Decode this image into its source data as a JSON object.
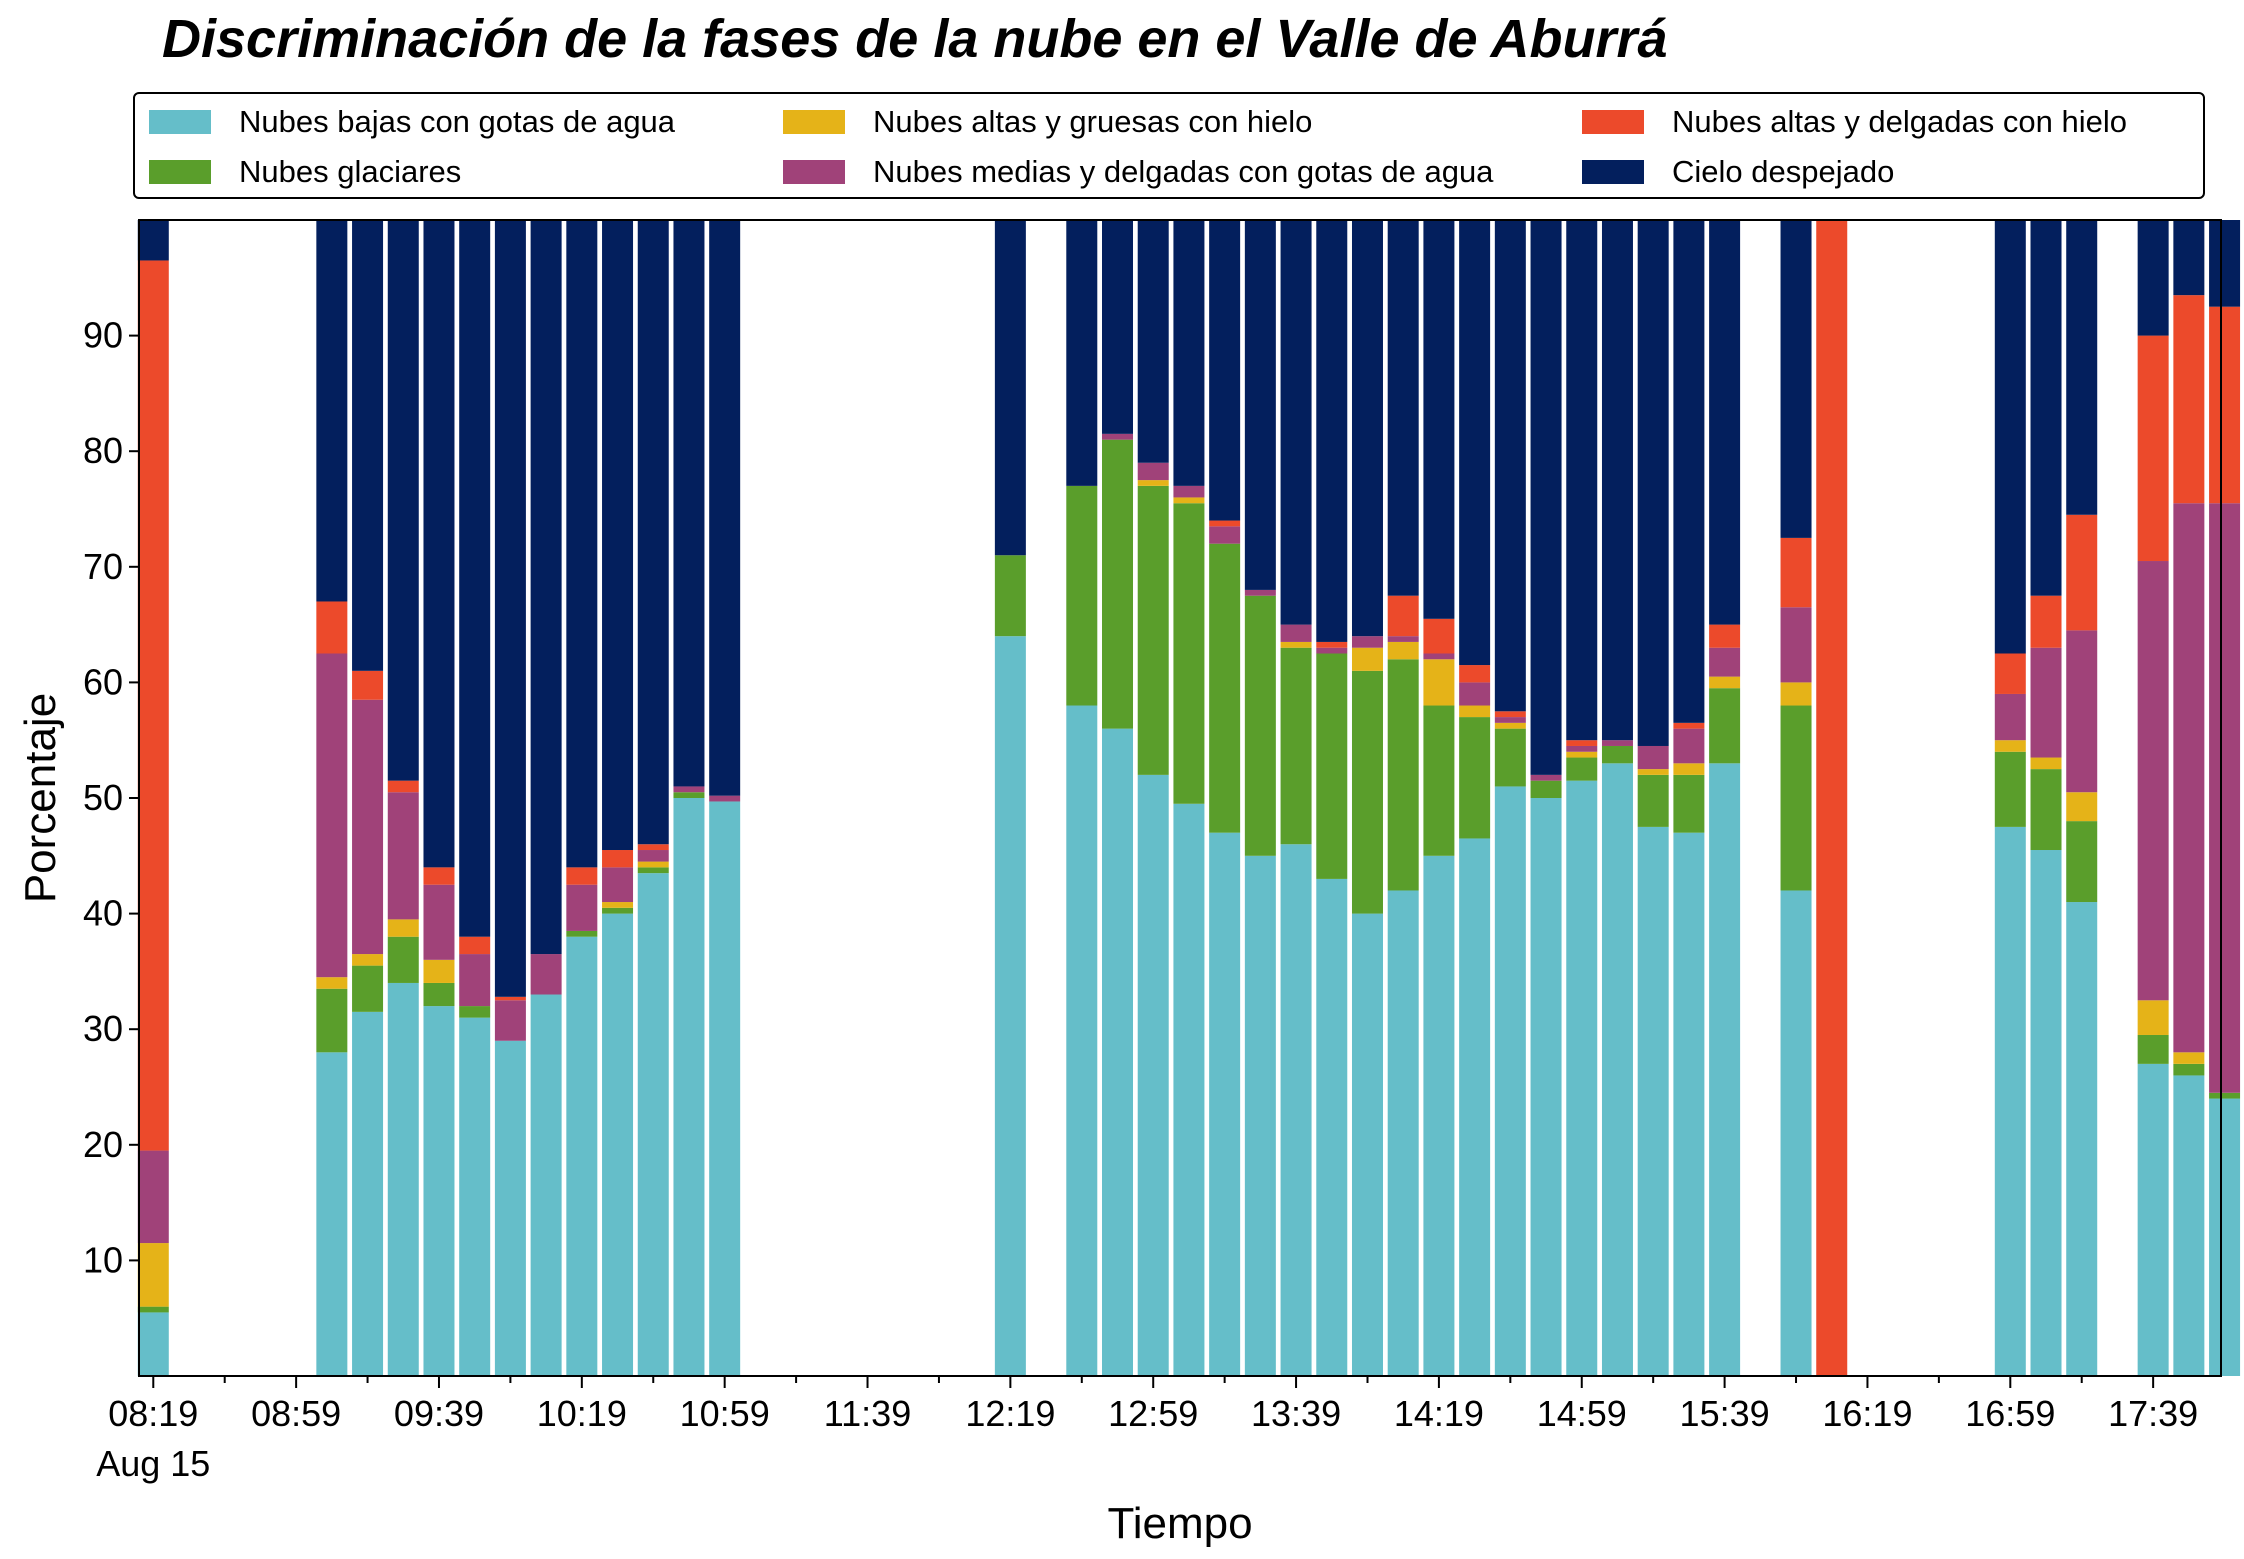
{
  "chart_data": {
    "type": "bar",
    "stacked": true,
    "title": "Discriminación de la fases de la nube en el Valle de Aburrá",
    "xlabel": "Tiempo",
    "ylabel": "Porcentaje",
    "ylim": [
      0,
      100
    ],
    "yticks": [
      10,
      20,
      30,
      40,
      50,
      60,
      70,
      80,
      90
    ],
    "xticks": [
      "08:19",
      "08:59",
      "09:39",
      "10:19",
      "10:59",
      "11:39",
      "12:19",
      "12:59",
      "13:39",
      "14:19",
      "14:59",
      "15:39",
      "16:19",
      "16:59",
      "17:39"
    ],
    "x_date_label": "Aug 15",
    "x_range_minutes": [
      495,
      1078
    ],
    "grid": false,
    "legend_placement": "top",
    "series": [
      {
        "name": "Nubes bajas con gotas de agua",
        "color": "#65bec9"
      },
      {
        "name": "Nubes glaciares",
        "color": "#5a9e2b"
      },
      {
        "name": "Nubes altas y gruesas con hielo",
        "color": "#e5b318"
      },
      {
        "name": "Nubes medias y delgadas con gotas de agua",
        "color": "#a04279"
      },
      {
        "name": "Nubes altas y delgadas con hielo",
        "color": "#ec4a2b"
      },
      {
        "name": "Cielo despejado",
        "color": "#031f5d"
      }
    ],
    "bars": [
      {
        "time": "08:19",
        "values": [
          5.5,
          0.5,
          5.5,
          8.0,
          77.0,
          3.5
        ]
      },
      {
        "time": "09:09",
        "values": [
          28.0,
          5.5,
          1.0,
          28.0,
          4.5,
          33.0
        ]
      },
      {
        "time": "09:19",
        "values": [
          31.5,
          4.0,
          1.0,
          22.0,
          2.5,
          39.0
        ]
      },
      {
        "time": "09:29",
        "values": [
          34.0,
          4.0,
          1.5,
          11.0,
          1.0,
          48.5
        ]
      },
      {
        "time": "09:39",
        "values": [
          32.0,
          2.0,
          2.0,
          6.5,
          1.5,
          56.0
        ]
      },
      {
        "time": "09:49",
        "values": [
          31.0,
          1.0,
          0.0,
          4.5,
          1.5,
          62.0
        ]
      },
      {
        "time": "09:59",
        "values": [
          29.0,
          0.0,
          0.0,
          3.5,
          0.3,
          67.2
        ]
      },
      {
        "time": "10:09",
        "values": [
          33.0,
          0.0,
          0.0,
          3.5,
          0.0,
          63.5
        ]
      },
      {
        "time": "10:19",
        "values": [
          38.0,
          0.5,
          0.0,
          4.0,
          1.5,
          56.0
        ]
      },
      {
        "time": "10:29",
        "values": [
          40.0,
          0.5,
          0.5,
          3.0,
          1.5,
          54.5
        ]
      },
      {
        "time": "10:39",
        "values": [
          43.5,
          0.5,
          0.5,
          1.0,
          0.5,
          54.0
        ]
      },
      {
        "time": "10:49",
        "values": [
          50.0,
          0.5,
          0.0,
          0.5,
          0.0,
          49.0
        ]
      },
      {
        "time": "10:59",
        "values": [
          49.7,
          0.0,
          0.0,
          0.5,
          0.0,
          49.8
        ]
      },
      {
        "time": "12:19",
        "values": [
          64.0,
          7.0,
          0.0,
          0.0,
          0.0,
          29.0
        ]
      },
      {
        "time": "12:39",
        "values": [
          58.0,
          19.0,
          0.0,
          0.0,
          0.0,
          23.0
        ]
      },
      {
        "time": "12:49",
        "values": [
          56.0,
          25.0,
          0.0,
          0.5,
          0.0,
          18.5
        ]
      },
      {
        "time": "12:59",
        "values": [
          52.0,
          25.0,
          0.5,
          1.5,
          0.0,
          21.0
        ]
      },
      {
        "time": "13:09",
        "values": [
          49.5,
          26.0,
          0.5,
          1.0,
          0.0,
          23.0
        ]
      },
      {
        "time": "13:19",
        "values": [
          47.0,
          25.0,
          0.0,
          1.5,
          0.5,
          26.0
        ]
      },
      {
        "time": "13:29",
        "values": [
          45.0,
          22.5,
          0.0,
          0.5,
          0.0,
          32.0
        ]
      },
      {
        "time": "13:39",
        "values": [
          46.0,
          17.0,
          0.5,
          1.5,
          0.0,
          35.0
        ]
      },
      {
        "time": "13:49",
        "values": [
          43.0,
          19.5,
          0.0,
          0.5,
          0.5,
          36.5
        ]
      },
      {
        "time": "13:59",
        "values": [
          40.0,
          21.0,
          2.0,
          1.0,
          0.0,
          36.0
        ]
      },
      {
        "time": "14:09",
        "values": [
          42.0,
          20.0,
          1.5,
          0.5,
          3.5,
          32.5
        ]
      },
      {
        "time": "14:19",
        "values": [
          45.0,
          13.0,
          4.0,
          0.5,
          3.0,
          34.5
        ]
      },
      {
        "time": "14:29",
        "values": [
          46.5,
          10.5,
          1.0,
          2.0,
          1.5,
          38.5
        ]
      },
      {
        "time": "14:39",
        "values": [
          51.0,
          5.0,
          0.5,
          0.5,
          0.5,
          42.5
        ]
      },
      {
        "time": "14:49",
        "values": [
          50.0,
          1.5,
          0.0,
          0.5,
          0.0,
          48.0
        ]
      },
      {
        "time": "14:59",
        "values": [
          51.5,
          2.0,
          0.5,
          0.5,
          0.5,
          45.0
        ]
      },
      {
        "time": "15:09",
        "values": [
          53.0,
          1.5,
          0.0,
          0.5,
          0.0,
          45.0
        ]
      },
      {
        "time": "15:19",
        "values": [
          47.5,
          4.5,
          0.5,
          2.0,
          0.0,
          45.5
        ]
      },
      {
        "time": "15:29",
        "values": [
          47.0,
          5.0,
          1.0,
          3.0,
          0.5,
          43.5
        ]
      },
      {
        "time": "15:39",
        "values": [
          53.0,
          6.5,
          1.0,
          2.5,
          2.0,
          35.0
        ]
      },
      {
        "time": "15:59",
        "values": [
          42.0,
          16.0,
          2.0,
          6.5,
          6.0,
          27.5
        ]
      },
      {
        "time": "16:09",
        "values": [
          0.0,
          0.0,
          0.0,
          0.0,
          100.0,
          0.0
        ]
      },
      {
        "time": "16:59",
        "values": [
          47.5,
          6.5,
          1.0,
          4.0,
          3.5,
          37.5
        ]
      },
      {
        "time": "17:09",
        "values": [
          45.5,
          7.0,
          1.0,
          9.5,
          4.5,
          32.5
        ]
      },
      {
        "time": "17:19",
        "values": [
          41.0,
          7.0,
          2.5,
          14.0,
          10.0,
          25.5
        ]
      },
      {
        "time": "17:39",
        "values": [
          27.0,
          2.5,
          3.0,
          38.0,
          19.5,
          10.0
        ]
      },
      {
        "time": "17:49",
        "values": [
          26.0,
          1.0,
          1.0,
          47.5,
          18.0,
          6.5
        ]
      },
      {
        "time": "17:59",
        "values": [
          24.0,
          0.5,
          0.0,
          51.0,
          17.0,
          7.5
        ]
      }
    ]
  }
}
